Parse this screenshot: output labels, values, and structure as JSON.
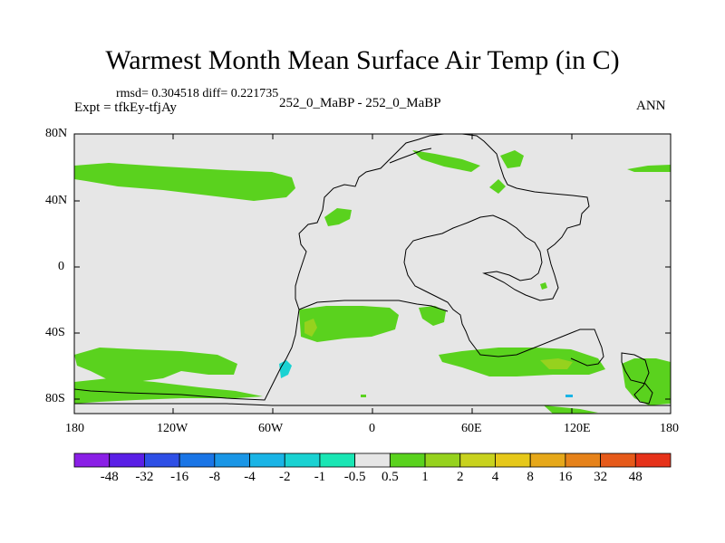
{
  "title": "Warmest Month Mean Surface Air Temp (in C)",
  "stats": "rmsd= 0.304518 diff= 0.221735",
  "expt": "Expt = tfkEy-tfjAy",
  "center_label": "252_0_MaBP - 252_0_MaBP",
  "season": "ANN",
  "map": {
    "lat_ticks": [
      "80N",
      "40N",
      "0",
      "40S",
      "80S"
    ],
    "lon_ticks": [
      "180",
      "120W",
      "60W",
      "0",
      "60E",
      "120E",
      "180"
    ],
    "background_color": "#e6e6e6"
  },
  "colorbar": {
    "colors": [
      "#8a1fe6",
      "#5a1fe6",
      "#2e4fe6",
      "#1a75e6",
      "#1a96e6",
      "#1ab4e6",
      "#1ad2d2",
      "#1ae6b4",
      "#e6e6e6",
      "#5ad21e",
      "#96d21e",
      "#c8d21e",
      "#e6c81a",
      "#e6a81a",
      "#e6821a",
      "#e65a1a",
      "#e6321a"
    ],
    "labels": [
      "-48",
      "-32",
      "-16",
      "-8",
      "-4",
      "-2",
      "-1",
      "-0.5",
      "0.5",
      "1",
      "2",
      "4",
      "8",
      "16",
      "32",
      "48"
    ]
  }
}
